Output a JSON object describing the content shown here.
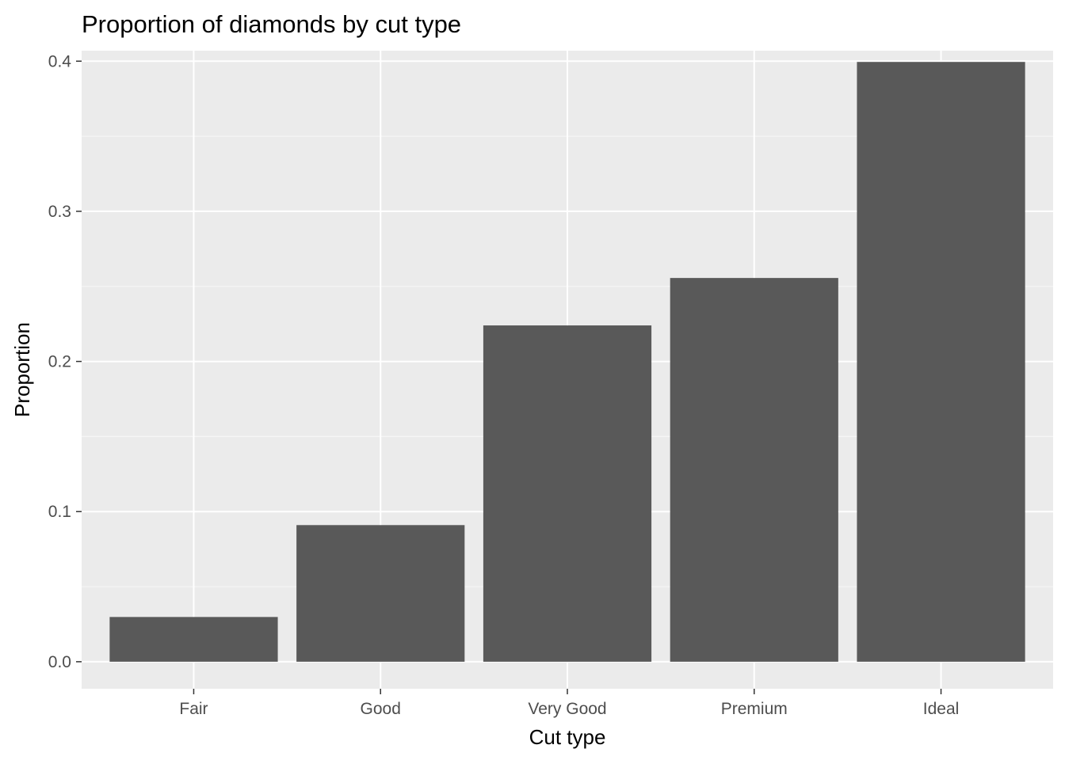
{
  "chart_data": {
    "type": "bar",
    "title": "Proportion of diamonds by cut type",
    "xlabel": "Cut type",
    "ylabel": "Proportion",
    "categories": [
      "Fair",
      "Good",
      "Very Good",
      "Premium",
      "Ideal"
    ],
    "values": [
      0.0298,
      0.091,
      0.224,
      0.2556,
      0.3995
    ],
    "ylim": [
      -0.018,
      0.407
    ],
    "yticks": [
      0.0,
      0.1,
      0.2,
      0.3,
      0.4
    ],
    "ytick_labels": [
      "0.0",
      "0.1",
      "0.2",
      "0.3",
      "0.4"
    ],
    "grid": true,
    "legend": "none",
    "colors": {
      "panel_background": "#ebebeb",
      "grid_major": "#ffffff",
      "grid_minor": "#f5f5f5",
      "bar_fill": "#595959",
      "tick_text": "#4d4d4d",
      "axis_tick": "#333333"
    }
  }
}
